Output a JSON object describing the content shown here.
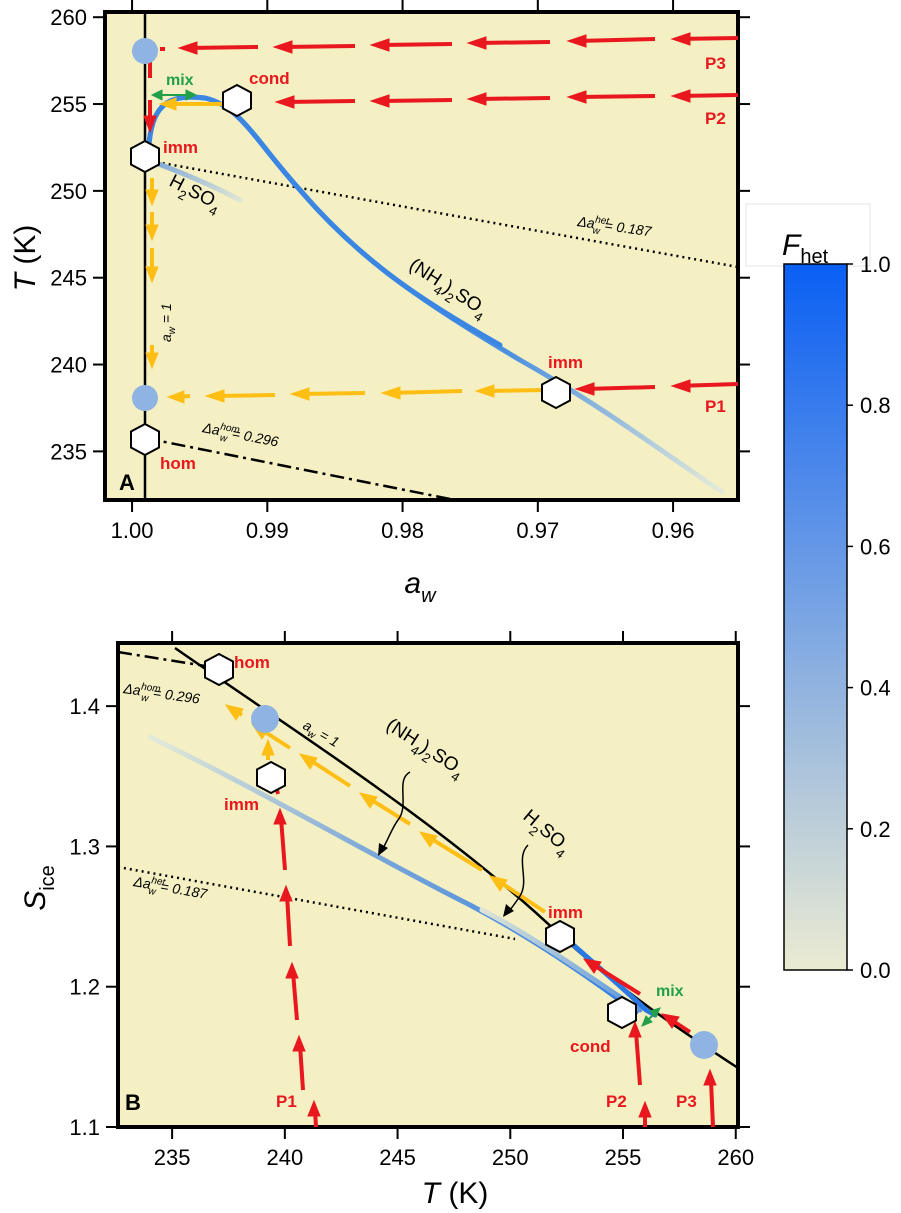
{
  "colors": {
    "panel_bg": "#f4f0c4",
    "red_arrow": "#e8181e",
    "orange_arrow": "#ffbe14",
    "blue_curve": "#3380e0",
    "light_blue_dot": "#8fb3e2",
    "green_mix": "#22a048",
    "colorbar_top": "#0a5ff4",
    "colorbar_bottom": "#ebebd2"
  },
  "panels": {
    "a": {
      "letter": "A",
      "xlabel": "a",
      "xlabel_sub": "w",
      "ylabel": "T",
      "ylabel_unit": " (K)",
      "xlim": [
        1.002,
        0.9552
      ],
      "ylim": [
        232.2,
        260.3
      ],
      "xticks": [
        1.0,
        0.99,
        0.98,
        0.97,
        0.96
      ],
      "xtick_labels": [
        "1.00",
        "0.99",
        "0.98",
        "0.97",
        "0.96"
      ],
      "yticks": [
        235,
        240,
        245,
        250,
        255,
        260
      ],
      "ytick_labels": [
        "235",
        "240",
        "245",
        "250",
        "255",
        "260"
      ]
    },
    "b": {
      "letter": "B",
      "xlabel": "T",
      "xlabel_unit": " (K)",
      "ylabel": "S",
      "ylabel_sub": "ice",
      "xlim": [
        232.6,
        260.1
      ],
      "ylim": [
        1.1,
        1.445
      ],
      "xticks": [
        235,
        240,
        245,
        250,
        255,
        260
      ],
      "xtick_labels": [
        "235",
        "240",
        "245",
        "250",
        "255",
        "260"
      ],
      "yticks": [
        1.1,
        1.2,
        1.3,
        1.4
      ],
      "ytick_labels": [
        "1.1",
        "1.2",
        "1.3",
        "1.4"
      ]
    }
  },
  "colorbar": {
    "label": "F",
    "label_sub": "het",
    "range": [
      0.0,
      1.0
    ],
    "tick_labels": [
      "1.0",
      "0.8",
      "0.6",
      "0.4",
      "0.2",
      "0.0"
    ]
  },
  "labels": {
    "p1": "P1",
    "p2": "P2",
    "p3": "P3",
    "imm": "imm",
    "cond": "cond",
    "hom": "hom",
    "mix": "mix",
    "h2so4_a": "H",
    "h2so4_2": "2",
    "h2so4_b": "SO",
    "h2so4_4": "4",
    "amsulf_a": "(NH",
    "amsulf_4": "4",
    "amsulf_b": ")",
    "amsulf_2": "2",
    "amsulf_c": "SO",
    "amsulf_4b": "4",
    "aw1_a": "a",
    "aw1_w": "w",
    "aw1_b": " = 1",
    "delta_het_a": "Δa",
    "delta_het_sup": "het",
    "delta_het_sub": "w",
    "delta_het_val": " = 0.187",
    "delta_hom_a": "Δa",
    "delta_hom_sup": "hom",
    "delta_hom_sub": "w",
    "delta_hom_val": " = 0.296"
  },
  "chart_data": [
    {
      "type": "line",
      "title": "",
      "xlabel": "a_w",
      "ylabel": "T (K)",
      "xlim": [
        1.002,
        0.9552
      ],
      "ylim": [
        232.2,
        260.3
      ],
      "grid": false,
      "series": [
        {
          "name": "(NH4)2SO4",
          "x": [
            0.9995,
            0.998,
            0.996,
            0.994,
            0.993,
            0.991,
            0.988,
            0.985,
            0.98,
            0.975,
            0.97,
            0.965,
            0.9575
          ],
          "y": [
            252.0,
            255.3,
            256.0,
            256.0,
            255.6,
            254.5,
            251.0,
            247.5,
            244.2,
            241.6,
            239.0,
            236.5,
            232.8
          ]
        },
        {
          "name": "H2SO4",
          "x": [
            0.9995,
            0.998,
            0.996,
            0.994,
            0.9925
          ],
          "y": [
            252.0,
            251.2,
            250.7,
            250.3,
            249.9
          ]
        },
        {
          "name": "Δa_w^het = 0.187",
          "x": [
            1.0,
            0.98,
            0.9552
          ],
          "y": [
            252.6,
            249.7,
            246.1
          ]
        },
        {
          "name": "Δa_w^hom = 0.296",
          "x": [
            1.0,
            0.9765
          ],
          "y": [
            236.0,
            232.2
          ]
        },
        {
          "name": "a_w = 1",
          "x": [
            1.0,
            1.0
          ],
          "y": [
            232.2,
            260.3
          ]
        },
        {
          "name": "P1",
          "x": [
            0.9552,
            0.969,
            1.0
          ],
          "y": [
            239.5,
            238.9,
            238.5
          ]
        },
        {
          "name": "P2",
          "x": [
            0.9552,
            0.9925,
            1.0
          ],
          "y": [
            256.0,
            255.5,
            255.3
          ]
        },
        {
          "name": "P3",
          "x": [
            0.9552,
            1.0
          ],
          "y": [
            259.5,
            258.5
          ]
        }
      ],
      "points": [
        {
          "name": "imm",
          "x": 0.969,
          "y": 238.9
        },
        {
          "name": "imm",
          "x": 1.0,
          "y": 252.4
        },
        {
          "name": "cond",
          "x": 0.9928,
          "y": 255.5
        },
        {
          "name": "hom",
          "x": 1.0,
          "y": 236.0
        }
      ]
    },
    {
      "type": "line",
      "title": "",
      "xlabel": "T (K)",
      "ylabel": "S_ice",
      "xlim": [
        232.6,
        260.1
      ],
      "ylim": [
        1.1,
        1.445
      ],
      "grid": false,
      "series": [
        {
          "name": "a_w = 1",
          "x": [
            235.0,
            237.0,
            240.0,
            245.0,
            250.0,
            255.0,
            260.0
          ],
          "y": [
            1.445,
            1.425,
            1.39,
            1.335,
            1.275,
            1.2,
            1.14
          ]
        },
        {
          "name": "(NH4)2SO4",
          "x": [
            235.0,
            239.0,
            244.0,
            249.0,
            252.0,
            254.0,
            255.5,
            256.0
          ],
          "y": [
            1.4,
            1.355,
            1.3,
            1.25,
            1.22,
            1.2,
            1.185,
            1.18
          ]
        },
        {
          "name": "H2SO4",
          "x": [
            248.5,
            250.0,
            252.0,
            254.0,
            256.0
          ],
          "y": [
            1.255,
            1.24,
            1.22,
            1.2,
            1.18
          ]
        },
        {
          "name": "Δa_w^het = 0.187",
          "x": [
            232.6,
            250.0
          ],
          "y": [
            1.285,
            1.238
          ]
        },
        {
          "name": "Δa_w^hom = 0.296",
          "x": [
            232.6,
            237.0
          ],
          "y": [
            1.445,
            1.425
          ]
        },
        {
          "name": "P1",
          "x": [
            241.2,
            239.0
          ],
          "y": [
            1.1,
            1.355
          ]
        },
        {
          "name": "P2",
          "x": [
            256.0,
            254.9
          ],
          "y": [
            1.1,
            1.18
          ]
        },
        {
          "name": "P3",
          "x": [
            259.0,
            258.4
          ],
          "y": [
            1.1,
            1.158
          ]
        }
      ],
      "points": [
        {
          "name": "hom",
          "x": 236.8,
          "y": 1.43
        },
        {
          "name": "imm",
          "x": 238.9,
          "y": 1.355
        },
        {
          "name": "imm",
          "x": 252.0,
          "y": 1.235
        },
        {
          "name": "cond",
          "x": 254.9,
          "y": 1.18
        }
      ]
    }
  ]
}
